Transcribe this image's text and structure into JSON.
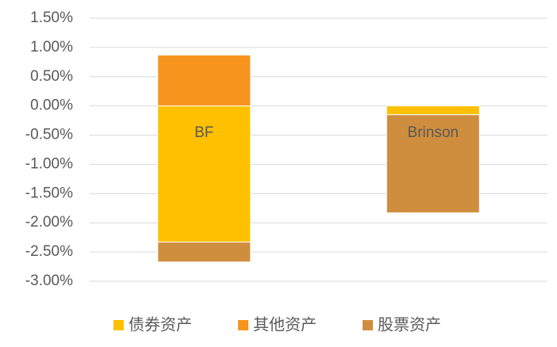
{
  "chart_data": {
    "type": "stacked_bar",
    "categories": [
      "BF",
      "Brinson"
    ],
    "series": [
      {
        "name": "债券资产",
        "color": "#ffc000",
        "values": [
          -2.33,
          -0.15
        ]
      },
      {
        "name": "其他资产",
        "color": "#f7941d",
        "values": [
          0.87,
          0
        ]
      },
      {
        "name": "股票资产",
        "color": "#cf8e3e",
        "values": [
          -0.34,
          -1.68
        ]
      }
    ],
    "ylim": [
      -3.0,
      1.5
    ],
    "yticks": [
      {
        "value": -3.0,
        "label": "-3.00%"
      },
      {
        "value": -2.5,
        "label": "-2.50%"
      },
      {
        "value": -2.0,
        "label": "-2.00%"
      },
      {
        "value": -1.5,
        "label": "-1.50%"
      },
      {
        "value": -1.0,
        "label": "-1.00%"
      },
      {
        "value": -0.5,
        "label": "-0.50%"
      },
      {
        "value": 0.0,
        "label": "0.00%"
      },
      {
        "value": 0.5,
        "label": "0.50%"
      },
      {
        "value": 1.0,
        "label": "1.00%"
      },
      {
        "value": 1.5,
        "label": "1.50%"
      }
    ],
    "grid": true,
    "legend": "bottom"
  }
}
